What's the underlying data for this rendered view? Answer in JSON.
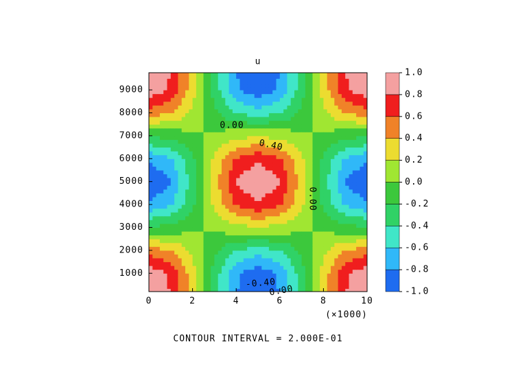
{
  "chart_data": {
    "type": "contour",
    "title": "u",
    "x_label": "(×1000)",
    "footer": "CONTOUR INTERVAL = 2.000E-01",
    "x": [
      0,
      1,
      2,
      3,
      4,
      5,
      6,
      7,
      8,
      9,
      10
    ],
    "y": [
      200,
      1000,
      2000,
      3000,
      4000,
      5000,
      6000,
      7000,
      8000,
      9000,
      9750
    ],
    "z": [
      [
        0.98,
        0.79,
        0.3,
        -0.3,
        -0.79,
        -0.98,
        -0.79,
        -0.3,
        0.3,
        0.79,
        0.98
      ],
      [
        0.94,
        0.76,
        0.29,
        -0.29,
        -0.76,
        -0.94,
        -0.76,
        -0.29,
        0.29,
        0.76,
        0.94
      ],
      [
        0.5,
        0.41,
        0.16,
        -0.16,
        -0.41,
        -0.5,
        -0.41,
        -0.16,
        0.16,
        0.41,
        0.5
      ],
      [
        -0.17,
        -0.14,
        -0.05,
        0.05,
        0.14,
        0.17,
        0.14,
        0.05,
        -0.05,
        -0.14,
        -0.17
      ],
      [
        -0.77,
        -0.62,
        -0.24,
        0.24,
        0.62,
        0.77,
        0.62,
        0.24,
        -0.24,
        -0.62,
        -0.77
      ],
      [
        -1,
        -0.81,
        -0.31,
        0.31,
        0.81,
        1,
        0.81,
        0.31,
        -0.31,
        -0.81,
        -1
      ],
      [
        -0.77,
        -0.62,
        -0.24,
        0.24,
        0.62,
        0.77,
        0.62,
        0.24,
        -0.24,
        -0.62,
        -0.77
      ],
      [
        -0.17,
        -0.14,
        -0.05,
        0.05,
        0.14,
        0.17,
        0.14,
        0.05,
        -0.05,
        -0.14,
        -0.17
      ],
      [
        0.5,
        0.41,
        0.16,
        -0.16,
        -0.41,
        -0.5,
        -0.41,
        -0.16,
        0.16,
        0.41,
        0.5
      ],
      [
        0.94,
        0.76,
        0.29,
        -0.29,
        -0.76,
        -0.94,
        -0.76,
        -0.29,
        0.29,
        0.76,
        0.94
      ],
      [
        0.99,
        0.8,
        0.31,
        -0.31,
        -0.8,
        -0.99,
        -0.8,
        -0.31,
        0.31,
        0.8,
        0.99
      ]
    ],
    "xlim": [
      0,
      10
    ],
    "ylim": [
      200,
      9750
    ],
    "xticks": [
      0,
      2,
      4,
      6,
      8,
      10
    ],
    "yticks": [
      1000,
      2000,
      3000,
      4000,
      5000,
      6000,
      7000,
      8000,
      9000
    ],
    "levels": [
      {
        "value": -1,
        "label": "-1.0"
      },
      {
        "value": -0.8,
        "label": "-0.8"
      },
      {
        "value": -0.6,
        "label": "-0.6"
      },
      {
        "value": -0.4,
        "label": "-0.4"
      },
      {
        "value": -0.2,
        "label": "-0.2"
      },
      {
        "value": 0,
        "label": "0.0"
      },
      {
        "value": 0.2,
        "label": "0.2"
      },
      {
        "value": 0.4,
        "label": "0.4"
      },
      {
        "value": 0.6,
        "label": "0.6"
      },
      {
        "value": 0.8,
        "label": "0.8"
      },
      {
        "value": 1,
        "label": "1.0"
      }
    ],
    "colors": [
      "#1e6cf0",
      "#30b8f8",
      "#40e6c8",
      "#30d266",
      "#3cc83c",
      "#a0e632",
      "#ecdc30",
      "#f08228",
      "#f01e1e",
      "#f4a0a0"
    ],
    "annotations": [
      "0.00",
      "0.40",
      "0.00",
      "-0.40",
      "0.00"
    ]
  }
}
